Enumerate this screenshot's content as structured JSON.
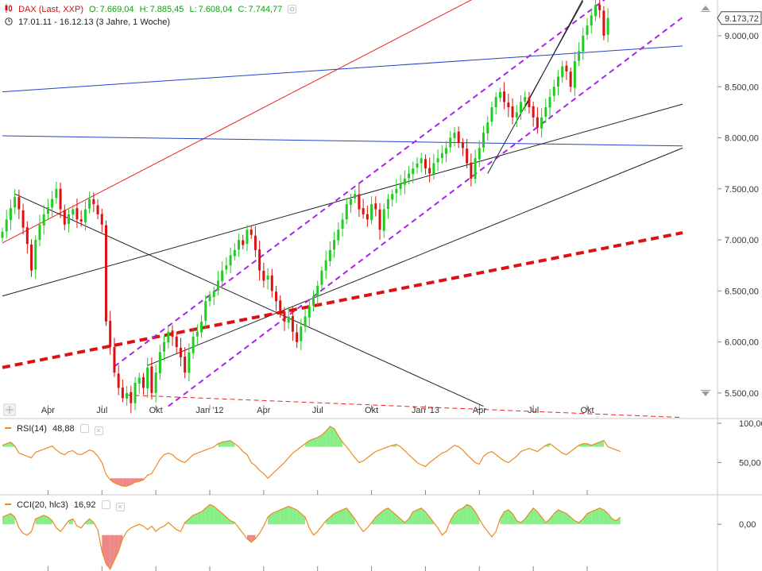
{
  "header": {
    "symbol": "DAX (Last, XXP)",
    "open_label": "O:",
    "open": "7.669,04",
    "high_label": "H:",
    "high": "7.885,45",
    "low_label": "L:",
    "low": "7.608,04",
    "close_label": "C:",
    "close": "7.744,77",
    "range": "17.01.11 - 16.12.13 (3 Jahre, 1 Woche)"
  },
  "rsi": {
    "label": "RSI(14)",
    "value": "48,88"
  },
  "cci": {
    "label": "CCI(20, hlc3)",
    "value": "16,92"
  },
  "colors": {
    "up": "#22cc22",
    "down": "#dd1111",
    "trend_red": "#ee2222",
    "trend_blue": "#2244cc",
    "channel": "#aa22ee",
    "line": "#222222",
    "indicator": "#ee8822",
    "fill_up": "#88ee88",
    "fill_down": "#ee8888"
  },
  "chart_data": [
    {
      "type": "candlestick",
      "title": "DAX (Last, XXP)",
      "subtitle": "17.01.11 - 16.12.13 (3 Jahre, 1 Woche)",
      "interval": "1 Woche",
      "ylim": [
        5250,
        9350
      ],
      "last_value": "9.173,72",
      "y_ticks": [
        {
          "value": 5500,
          "label": "5.500,00"
        },
        {
          "value": 6000,
          "label": "6.000,00"
        },
        {
          "value": 6500,
          "label": "6.500,00"
        },
        {
          "value": 7000,
          "label": "7.000,00"
        },
        {
          "value": 7500,
          "label": "7.500,00"
        },
        {
          "value": 8000,
          "label": "8.000,00"
        },
        {
          "value": 8500,
          "label": "8.500,00"
        },
        {
          "value": 9000,
          "label": "9.000,00"
        }
      ],
      "x_ticks": [
        {
          "index": 11,
          "label": "Apr"
        },
        {
          "index": 24,
          "label": "Jul"
        },
        {
          "index": 37,
          "label": "Okt"
        },
        {
          "index": 50,
          "label": "Jan '12"
        },
        {
          "index": 63,
          "label": "Apr"
        },
        {
          "index": 76,
          "label": "Jul"
        },
        {
          "index": 89,
          "label": "Okt"
        },
        {
          "index": 102,
          "label": "Jan '13"
        },
        {
          "index": 115,
          "label": "Apr"
        },
        {
          "index": 128,
          "label": "Jul"
        },
        {
          "index": 141,
          "label": "Okt"
        }
      ],
      "closes": [
        7080,
        7200,
        7310,
        7420,
        7300,
        7120,
        6960,
        6700,
        7000,
        7150,
        7250,
        7320,
        7400,
        7500,
        7300,
        7150,
        7250,
        7300,
        7200,
        7180,
        7300,
        7400,
        7350,
        7250,
        7150,
        6200,
        5950,
        5700,
        5550,
        5450,
        5500,
        5400,
        5600,
        5650,
        5550,
        5750,
        5500,
        5700,
        5900,
        6000,
        6100,
        6050,
        5950,
        5850,
        5700,
        5900,
        6050,
        6100,
        6200,
        6400,
        6450,
        6500,
        6600,
        6700,
        6750,
        6850,
        6900,
        7000,
        6950,
        7100,
        7050,
        6900,
        6700,
        6600,
        6650,
        6500,
        6400,
        6300,
        6200,
        6250,
        6100,
        6000,
        6150,
        6250,
        6350,
        6450,
        6550,
        6700,
        6800,
        6900,
        7000,
        7100,
        7200,
        7350,
        7400,
        7450,
        7300,
        7250,
        7200,
        7350,
        7300,
        7100,
        7300,
        7400,
        7450,
        7500,
        7550,
        7600,
        7650,
        7700,
        7750,
        7800,
        7700,
        7650,
        7750,
        7800,
        7850,
        7900,
        8000,
        8050,
        7950,
        7900,
        7750,
        7600,
        7800,
        7900,
        8050,
        8150,
        8300,
        8400,
        8450,
        8350,
        8300,
        8200,
        8250,
        8350,
        8400,
        8300,
        8200,
        8100,
        8200,
        8300,
        8400,
        8500,
        8600,
        8700,
        8650,
        8500,
        8750,
        8850,
        9000,
        9100,
        9200,
        9300,
        9250,
        9000,
        9173
      ],
      "trendlines": [
        {
          "name": "red-trend",
          "style": "solid",
          "from": [
            0,
            6970
          ],
          "to": [
            132,
            9750
          ]
        },
        {
          "name": "blue-upper",
          "style": "solid",
          "from": [
            0,
            8450
          ],
          "to": [
            164,
            8900
          ]
        },
        {
          "name": "blue-lower",
          "style": "solid",
          "from": [
            0,
            8020
          ],
          "to": [
            164,
            7920
          ]
        },
        {
          "name": "black-downtrend",
          "style": "solid",
          "from": [
            3,
            7450
          ],
          "to": [
            116,
            5370
          ]
        },
        {
          "name": "black-long-upper",
          "style": "solid",
          "from": [
            0,
            6450
          ],
          "to": [
            164,
            8330
          ]
        },
        {
          "name": "black-long-lower",
          "style": "solid",
          "from": [
            35,
            5770
          ],
          "to": [
            164,
            7900
          ]
        },
        {
          "name": "red-dashed-support",
          "style": "dashed",
          "from": [
            0,
            5750
          ],
          "to": [
            164,
            7070
          ]
        },
        {
          "name": "red-thin-dashed",
          "style": "dashed",
          "from": [
            30,
            5480
          ],
          "to": [
            164,
            5260
          ]
        },
        {
          "name": "channel-upper",
          "style": "dashed",
          "from": [
            27,
            5760
          ],
          "to": [
            150,
            9500
          ]
        },
        {
          "name": "channel-lower",
          "style": "dashed",
          "from": [
            40,
            5370
          ],
          "to": [
            164,
            9180
          ]
        },
        {
          "name": "steep-up-1",
          "style": "solid",
          "from": [
            117,
            7650
          ],
          "to": [
            140,
            9340
          ]
        },
        {
          "name": "steep-up-2",
          "style": "solid",
          "from": [
            126,
            8300
          ],
          "to": [
            140,
            9360
          ]
        }
      ]
    },
    {
      "type": "line",
      "title": "RSI(14)",
      "ylim": [
        10,
        105
      ],
      "reference_level": 70,
      "y_ticks": [
        {
          "value": 100,
          "label": "100,00"
        },
        {
          "value": 50,
          "label": "50,00"
        }
      ],
      "values": [
        72,
        74,
        76,
        71,
        62,
        60,
        58,
        56,
        63,
        65,
        67,
        69,
        71,
        66,
        62,
        60,
        64,
        65,
        61,
        60,
        63,
        66,
        64,
        58,
        50,
        35,
        28,
        24,
        22,
        20,
        20,
        22,
        25,
        26,
        28,
        34,
        36,
        45,
        54,
        60,
        62,
        60,
        55,
        52,
        50,
        55,
        60,
        62,
        64,
        66,
        68,
        70,
        74,
        76,
        77,
        78,
        74,
        70,
        64,
        60,
        50,
        46,
        40,
        36,
        30,
        35,
        40,
        45,
        50,
        56,
        62,
        66,
        70,
        74,
        78,
        80,
        82,
        85,
        90,
        96,
        93,
        84,
        76,
        70,
        63,
        56,
        50,
        52,
        56,
        60,
        64,
        66,
        68,
        70,
        72,
        73,
        70,
        65,
        60,
        55,
        50,
        47,
        45,
        50,
        54,
        58,
        62,
        64,
        68,
        72,
        70,
        66,
        60,
        55,
        50,
        48,
        58,
        62,
        64,
        60,
        56,
        52,
        50,
        54,
        58,
        64,
        66,
        68,
        66,
        64,
        68,
        72,
        74,
        70,
        66,
        62,
        60,
        64,
        68,
        72,
        74,
        74,
        72,
        74,
        76,
        78,
        70,
        68,
        66,
        64
      ]
    },
    {
      "type": "line",
      "title": "CCI(20, hlc3)",
      "ylim": [
        -260,
        160
      ],
      "zero_line": 0,
      "y_ticks": [
        {
          "value": 0,
          "label": "0,00"
        }
      ],
      "values": [
        40,
        50,
        60,
        40,
        -20,
        -50,
        -60,
        -40,
        30,
        40,
        50,
        40,
        20,
        -20,
        -40,
        -10,
        20,
        30,
        -10,
        -20,
        10,
        30,
        10,
        -30,
        -150,
        -220,
        -250,
        -200,
        -150,
        -80,
        -40,
        -20,
        -10,
        0,
        -10,
        -30,
        -10,
        -40,
        -20,
        -10,
        10,
        -10,
        -30,
        -40,
        10,
        30,
        50,
        60,
        70,
        90,
        110,
        100,
        80,
        60,
        40,
        20,
        10,
        -20,
        -50,
        -80,
        -100,
        -80,
        -50,
        -10,
        40,
        60,
        70,
        80,
        90,
        100,
        90,
        80,
        60,
        40,
        -20,
        -60,
        -40,
        -10,
        20,
        40,
        60,
        70,
        80,
        90,
        60,
        30,
        -10,
        -40,
        -20,
        10,
        40,
        60,
        80,
        90,
        70,
        50,
        30,
        10,
        30,
        70,
        80,
        90,
        70,
        40,
        10,
        -20,
        -60,
        -40,
        20,
        60,
        80,
        90,
        110,
        100,
        70,
        30,
        -10,
        -40,
        -70,
        -40,
        30,
        70,
        80,
        60,
        20,
        10,
        30,
        60,
        90,
        70,
        40,
        10,
        30,
        60,
        80,
        70,
        60,
        40,
        20,
        10,
        30,
        60,
        70,
        80,
        90,
        80,
        60,
        30,
        20,
        40
      ]
    }
  ]
}
